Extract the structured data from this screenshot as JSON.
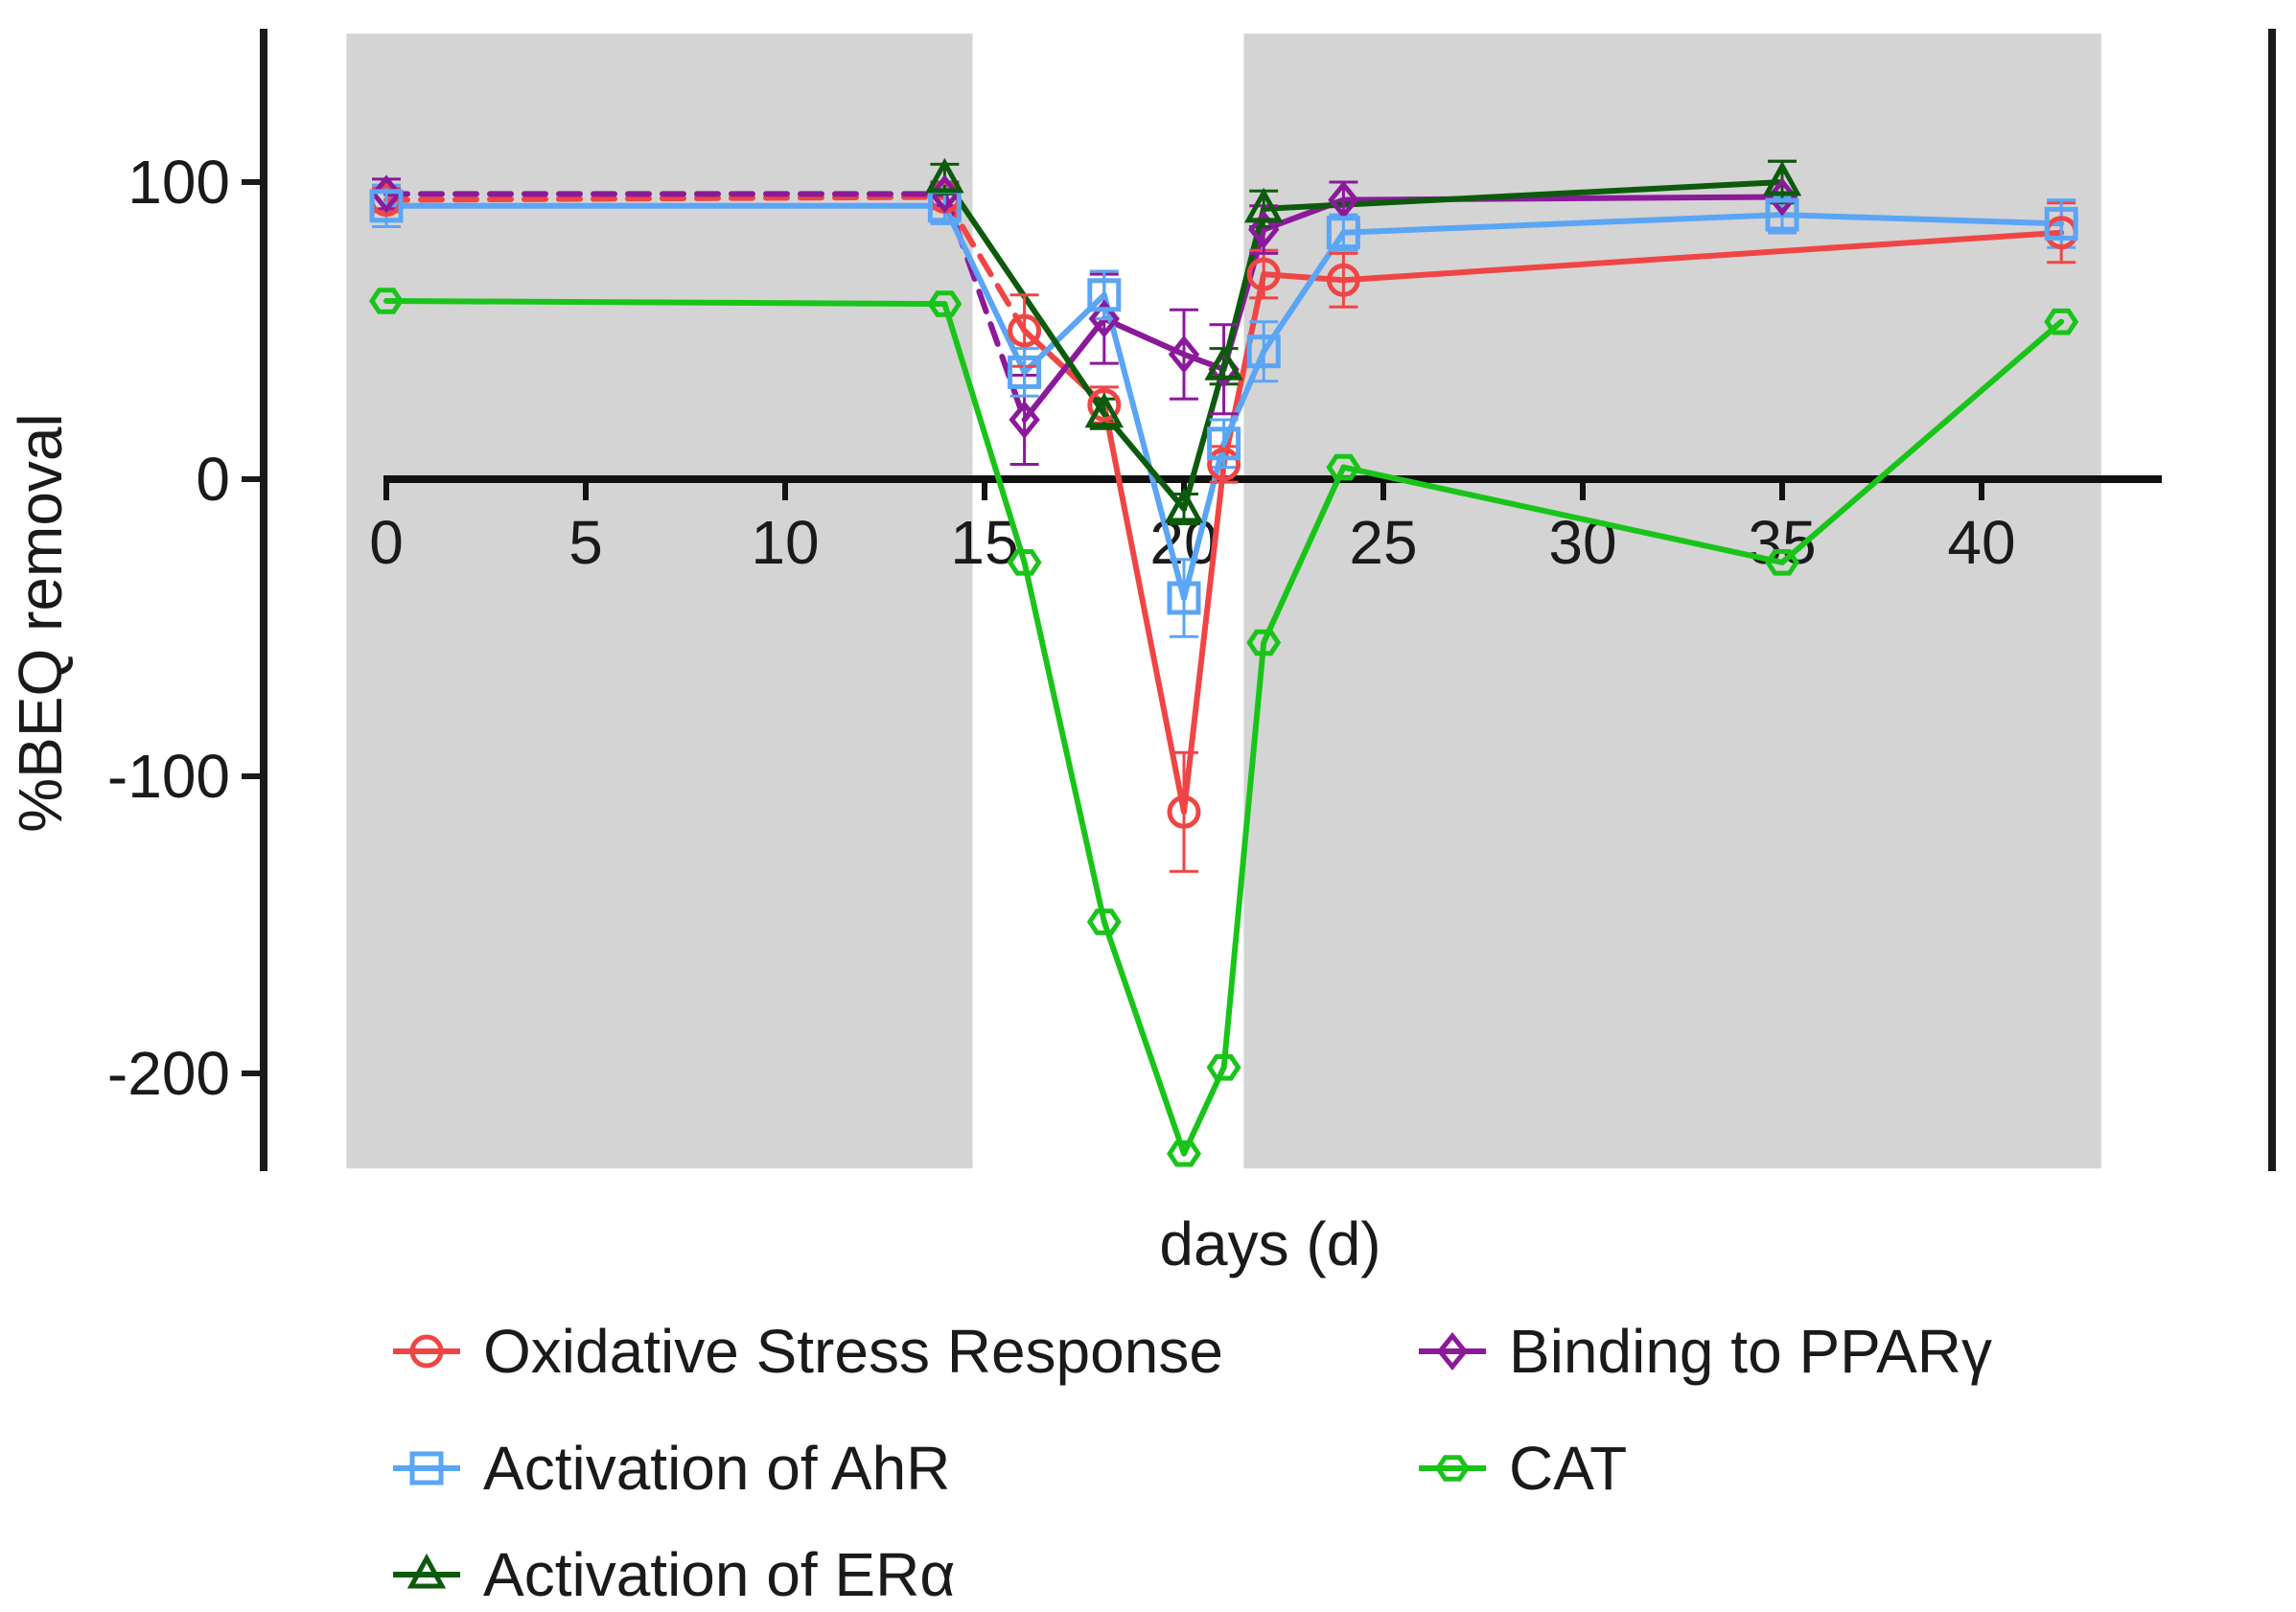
{
  "chart_data": {
    "type": "line",
    "xlabel": "days (d)",
    "ylabel": "%BEQ removal",
    "xlim": [
      -1,
      43
    ],
    "ylim": [
      -232,
      150
    ],
    "xticks": [
      0,
      5,
      10,
      15,
      20,
      25,
      30,
      35,
      40
    ],
    "yticks": [
      100,
      0,
      -100,
      -200
    ],
    "shaded_periods": [
      [
        -1,
        14.7
      ],
      [
        21.5,
        43
      ]
    ],
    "legend_position": "bottom",
    "series": [
      {
        "name": "Oxidative Stress Response",
        "color": "#f04545",
        "marker": "circle",
        "dashed_segment": [
          0,
          14,
          16
        ],
        "points": [
          {
            "x": 0,
            "y": 94,
            "err": 4
          },
          {
            "x": 14,
            "y": 95,
            "err": 4
          },
          {
            "x": 16,
            "y": 50,
            "err": 12
          },
          {
            "x": 18,
            "y": 25,
            "err": 6
          },
          {
            "x": 20,
            "y": -112,
            "err": 20
          },
          {
            "x": 21,
            "y": 5,
            "err": 6
          },
          {
            "x": 22,
            "y": 69,
            "err": 8
          },
          {
            "x": 24,
            "y": 67,
            "err": 9
          },
          {
            "x": 42,
            "y": 83,
            "err": 10
          }
        ]
      },
      {
        "name": "Binding to PPARγ",
        "color": "#8b1a9a",
        "marker": "diamond",
        "dashed_segment": [
          0,
          14,
          16
        ],
        "points": [
          {
            "x": 0,
            "y": 96,
            "err": 5
          },
          {
            "x": 14,
            "y": 96,
            "err": 4
          },
          {
            "x": 16,
            "y": 20,
            "err": 15
          },
          {
            "x": 18,
            "y": 54,
            "err": 15
          },
          {
            "x": 20,
            "y": 42,
            "err": 15
          },
          {
            "x": 21,
            "y": 37,
            "err": 15
          },
          {
            "x": 22,
            "y": 84,
            "err": 8
          },
          {
            "x": 24,
            "y": 94,
            "err": 6
          },
          {
            "x": 35,
            "y": 95,
            "err": 12
          }
        ]
      },
      {
        "name": "Activation of AhR",
        "color": "#5aa5f5",
        "marker": "square",
        "dashed_segment": null,
        "points": [
          {
            "x": 0,
            "y": 92,
            "err": 7
          },
          {
            "x": 14,
            "y": 92,
            "err": 6
          },
          {
            "x": 16,
            "y": 36,
            "err": 8
          },
          {
            "x": 18,
            "y": 62,
            "err": 8
          },
          {
            "x": 20,
            "y": -40,
            "err": 13
          },
          {
            "x": 21,
            "y": 12,
            "err": 8
          },
          {
            "x": 22,
            "y": 43,
            "err": 10
          },
          {
            "x": 24,
            "y": 83,
            "err": 6
          },
          {
            "x": 35,
            "y": 89,
            "err": 6
          },
          {
            "x": 42,
            "y": 86,
            "err": 8
          }
        ]
      },
      {
        "name": "CAT",
        "color": "#19c419",
        "marker": "hexagon",
        "dashed_segment": null,
        "points": [
          {
            "x": 0,
            "y": 60
          },
          {
            "x": 14,
            "y": 59
          },
          {
            "x": 16,
            "y": -28
          },
          {
            "x": 18,
            "y": -149
          },
          {
            "x": 20,
            "y": -227
          },
          {
            "x": 21,
            "y": -198
          },
          {
            "x": 22,
            "y": -55
          },
          {
            "x": 24,
            "y": 4
          },
          {
            "x": 35,
            "y": -28
          },
          {
            "x": 42,
            "y": 53
          }
        ]
      },
      {
        "name": "Activation of ERα",
        "color": "#0c5b0c",
        "marker": "triangle",
        "dashed_segment": null,
        "points": [
          {
            "x": 14,
            "y": 101,
            "err": 5
          },
          {
            "x": 18,
            "y": 22,
            "err": 5
          },
          {
            "x": 20,
            "y": -10,
            "err": 5
          },
          {
            "x": 21,
            "y": 38,
            "err": 6
          },
          {
            "x": 22,
            "y": 91,
            "err": 6
          },
          {
            "x": 35,
            "y": 100,
            "err": 7
          }
        ]
      }
    ]
  }
}
